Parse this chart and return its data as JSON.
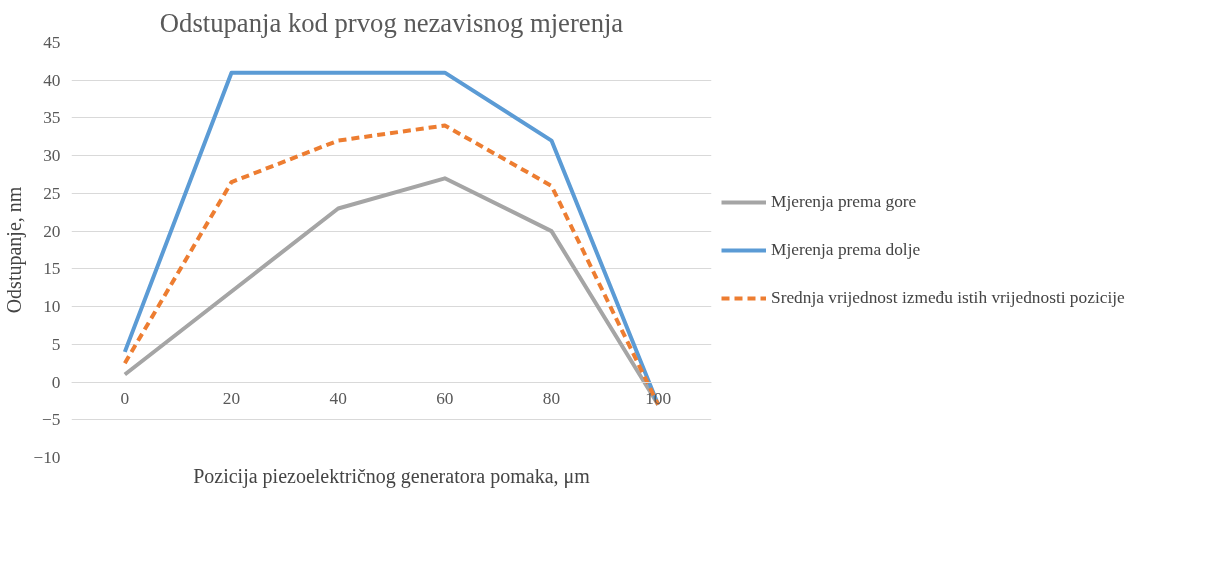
{
  "chart_data": {
    "type": "line",
    "title": "Odstupanja kod prvog nezavisnog mjerenja",
    "xlabel": "Pozicija piezoelektričnog generatora pomaka, μm",
    "ylabel": "Odstupanje, nm",
    "categories": [
      "0",
      "20",
      "40",
      "60",
      "80",
      "100"
    ],
    "ylim": [
      -10,
      45
    ],
    "yticks": [
      -10,
      -5,
      0,
      5,
      10,
      15,
      20,
      25,
      30,
      35,
      40,
      45
    ],
    "grid": "y",
    "legend": "right",
    "marker": "none",
    "series": [
      {
        "name": "Mjerenja prema gore",
        "color": "#a5a5a5",
        "values": [
          1,
          12,
          23,
          27,
          20,
          -3
        ],
        "line_style": "solid"
      },
      {
        "name": "Mjerenja prema dolje",
        "color": "#5b9bd5",
        "values": [
          4,
          41,
          41,
          41,
          32,
          -3
        ],
        "line_style": "solid"
      },
      {
        "name": "Srednja vrijednost između istih vrijednosti pozicije",
        "color": "#ed7d31",
        "values": [
          2.5,
          26.5,
          32,
          34,
          26,
          -3
        ],
        "line_style": "dashed"
      }
    ]
  }
}
